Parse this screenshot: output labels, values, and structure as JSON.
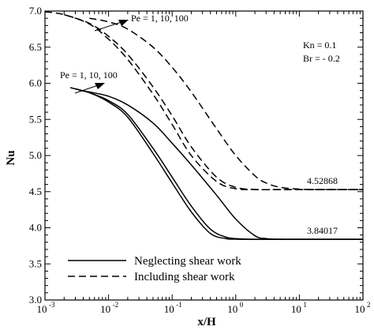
{
  "chart_data": {
    "type": "line",
    "xlabel": "x/H",
    "ylabel": "Nu",
    "xscale": "log",
    "xlim": [
      0.001,
      100
    ],
    "ylim": [
      3.0,
      7.0
    ],
    "x_ticks": [
      {
        "value": 0.001,
        "base": "10",
        "exp": "-3"
      },
      {
        "value": 0.01,
        "base": "10",
        "exp": "-2"
      },
      {
        "value": 0.1,
        "base": "10",
        "exp": "-1"
      },
      {
        "value": 1,
        "base": "10",
        "exp": "0"
      },
      {
        "value": 10,
        "base": "10",
        "exp": "1"
      },
      {
        "value": 100,
        "base": "10",
        "exp": "2"
      }
    ],
    "y_ticks": [
      "3.0",
      "3.5",
      "4.0",
      "4.5",
      "5.0",
      "5.5",
      "6.0",
      "6.5",
      "7.0"
    ],
    "grid": false,
    "legend_position": "bottom-left",
    "legend": [
      {
        "label": "Neglecting shear work",
        "style": "solid"
      },
      {
        "label": "Including shear work",
        "style": "dashed"
      }
    ],
    "series": [
      {
        "group": "neglecting",
        "style": "solid",
        "x": [
          0.0025,
          0.005,
          0.01,
          0.02,
          0.05,
          0.1,
          0.2,
          0.4,
          0.7,
          1.0,
          2.0,
          5.0,
          100
        ],
        "y": [
          5.94,
          5.87,
          5.74,
          5.53,
          5.03,
          4.62,
          4.22,
          3.92,
          3.85,
          3.842,
          3.8402,
          3.8402,
          3.8402
        ]
      },
      {
        "group": "neglecting",
        "style": "solid",
        "x": [
          0.003,
          0.005,
          0.01,
          0.02,
          0.05,
          0.1,
          0.2,
          0.4,
          0.7,
          1.0,
          2.0,
          5.0,
          100
        ],
        "y": [
          5.92,
          5.87,
          5.76,
          5.57,
          5.1,
          4.7,
          4.3,
          3.98,
          3.87,
          3.85,
          3.8405,
          3.8402,
          3.8402
        ]
      },
      {
        "group": "neglecting",
        "style": "solid",
        "x": [
          0.0035,
          0.005,
          0.01,
          0.02,
          0.05,
          0.1,
          0.2,
          0.5,
          1.0,
          2.0,
          3.0,
          5.0,
          10,
          100
        ],
        "y": [
          5.9,
          5.88,
          5.82,
          5.7,
          5.45,
          5.17,
          4.87,
          4.45,
          4.12,
          3.89,
          3.85,
          3.841,
          3.8402,
          3.8402
        ]
      },
      {
        "group": "including",
        "style": "dashed",
        "x": [
          0.001,
          0.002,
          0.005,
          0.01,
          0.02,
          0.05,
          0.1,
          0.2,
          0.5,
          1.0,
          2.0,
          5.0,
          10,
          100
        ],
        "y": [
          6.99,
          6.95,
          6.82,
          6.61,
          6.33,
          5.85,
          5.43,
          5.0,
          4.64,
          4.54,
          4.5287,
          4.5287,
          4.5287,
          4.5287
        ]
      },
      {
        "group": "including",
        "style": "dashed",
        "x": [
          0.002,
          0.005,
          0.01,
          0.02,
          0.05,
          0.1,
          0.2,
          0.5,
          1.0,
          2.0,
          5.0,
          10,
          100
        ],
        "y": [
          6.95,
          6.83,
          6.65,
          6.4,
          5.95,
          5.55,
          5.12,
          4.7,
          4.56,
          4.53,
          4.5287,
          4.5287,
          4.5287
        ]
      },
      {
        "group": "including",
        "style": "dashed",
        "x": [
          0.005,
          0.01,
          0.02,
          0.05,
          0.1,
          0.2,
          0.5,
          1.0,
          2.0,
          3.0,
          5.0,
          10,
          20,
          100
        ],
        "y": [
          6.9,
          6.85,
          6.75,
          6.5,
          6.22,
          5.88,
          5.37,
          5.0,
          4.72,
          4.62,
          4.56,
          4.535,
          4.5287,
          4.5287
        ]
      }
    ],
    "annotations": {
      "kn": "Kn = 0.1",
      "br": "Br = - 0.2",
      "pe_top": "Pe = 1, 10, 100",
      "pe_mid": "Pe = 1, 10, 100",
      "value_including": "4.52868",
      "value_neglecting": "3.84017"
    }
  }
}
